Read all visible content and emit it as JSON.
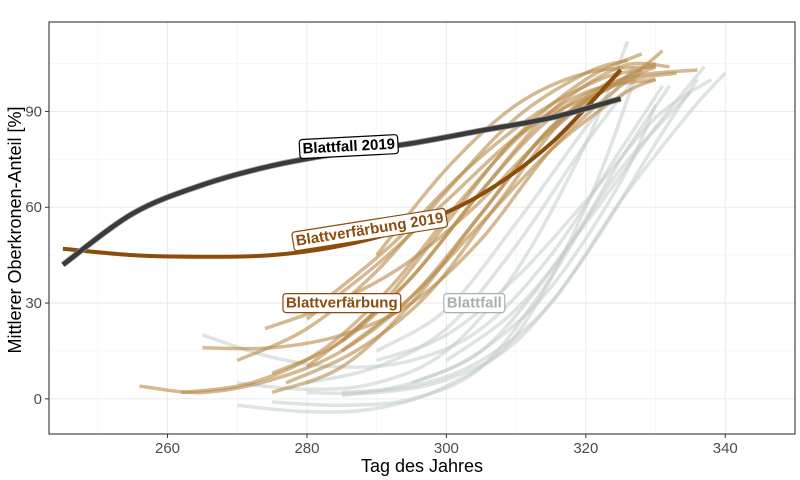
{
  "chart_data": {
    "type": "line",
    "title": "",
    "xlabel": "Tag des Jahres",
    "ylabel": "Mittlerer Oberkronen-Anteil [%]",
    "xlim": [
      243,
      350
    ],
    "ylim": [
      -11,
      118
    ],
    "xticks": [
      260,
      280,
      300,
      320,
      340
    ],
    "yticks": [
      0,
      30,
      60,
      90
    ],
    "grid": true,
    "legend": "none",
    "colors": {
      "blattfall_2019": "#3a3a3a",
      "blattverfaerbung_2019": "#8b4c0c",
      "blattverfaerbung": "#b88a4a",
      "blattfall": "#c2cccc"
    },
    "annotations": [
      {
        "text": "Blattfall 2019",
        "x": 286,
        "y": 79,
        "angle": -3,
        "color": "#000000",
        "border": "#000000"
      },
      {
        "text": "Blattverfärbung 2019",
        "x": 289,
        "y": 53,
        "angle": -9,
        "color": "#8b4c0c",
        "border": "#8b4c0c"
      },
      {
        "text": "Blattverfärbung",
        "x": 285,
        "y": 30,
        "angle": 0,
        "color": "#8b4c0c",
        "border": "#8b4c0c"
      },
      {
        "text": "Blattfall",
        "x": 304,
        "y": 30,
        "angle": 0,
        "color": "#a6b0b0",
        "border": "#a6b0b0"
      }
    ],
    "series": [
      {
        "group": "blattfall",
        "x": [
          270,
          280,
          290,
          300,
          310,
          320,
          327
        ],
        "y": [
          -2,
          -4,
          -3,
          4,
          20,
          60,
          100
        ]
      },
      {
        "group": "blattfall",
        "x": [
          275,
          285,
          295,
          305,
          315,
          325,
          332
        ],
        "y": [
          -1,
          -2,
          0,
          10,
          38,
          75,
          98
        ]
      },
      {
        "group": "blattfall",
        "x": [
          280,
          290,
          300,
          310,
          320,
          330,
          336
        ],
        "y": [
          2,
          2,
          6,
          18,
          45,
          80,
          100
        ]
      },
      {
        "group": "blattfall",
        "x": [
          270,
          280,
          290,
          300,
          310,
          320,
          326
        ],
        "y": [
          5,
          3,
          5,
          15,
          40,
          80,
          112
        ]
      },
      {
        "group": "blattfall",
        "x": [
          265,
          275,
          285,
          295,
          305,
          315,
          325,
          331
        ],
        "y": [
          20,
          13,
          10,
          12,
          22,
          45,
          78,
          98
        ]
      },
      {
        "group": "blattfall",
        "x": [
          285,
          295,
          305,
          315,
          325,
          335,
          340
        ],
        "y": [
          2,
          4,
          12,
          30,
          62,
          90,
          102
        ]
      },
      {
        "group": "blattfall",
        "x": [
          280,
          290,
          300,
          310,
          320,
          328
        ],
        "y": [
          5,
          10,
          22,
          48,
          80,
          103
        ]
      },
      {
        "group": "blattfall",
        "x": [
          290,
          300,
          310,
          320,
          330,
          338
        ],
        "y": [
          12,
          20,
          38,
          62,
          88,
          100
        ]
      },
      {
        "group": "blattfall",
        "x": [
          295,
          305,
          315,
          325,
          335
        ],
        "y": [
          5,
          15,
          40,
          72,
          96
        ]
      },
      {
        "group": "blattfall",
        "x": [
          290,
          300,
          310,
          320,
          327
        ],
        "y": [
          15,
          28,
          55,
          85,
          104
        ]
      },
      {
        "group": "blattfall",
        "x": [
          285,
          295,
          305,
          315,
          325,
          330
        ],
        "y": [
          1,
          5,
          15,
          35,
          68,
          92
        ]
      },
      {
        "group": "blattfall",
        "x": [
          300,
          310,
          320,
          330,
          337
        ],
        "y": [
          12,
          28,
          55,
          85,
          104
        ]
      },
      {
        "group": "blattverfaerbung",
        "x": [
          256,
          265,
          275,
          285,
          295,
          305,
          315,
          325
        ],
        "y": [
          4,
          2,
          6,
          15,
          32,
          58,
          85,
          102
        ]
      },
      {
        "group": "blattverfaerbung",
        "x": [
          265,
          275,
          285,
          295,
          305,
          315,
          325,
          330
        ],
        "y": [
          16,
          16,
          20,
          30,
          50,
          78,
          98,
          104
        ]
      },
      {
        "group": "blattverfaerbung",
        "x": [
          275,
          285,
          295,
          305,
          315,
          325,
          330
        ],
        "y": [
          2,
          10,
          30,
          58,
          85,
          100,
          105
        ]
      },
      {
        "group": "blattverfaerbung",
        "x": [
          280,
          290,
          300,
          310,
          320,
          328
        ],
        "y": [
          10,
          28,
          55,
          82,
          100,
          108
        ]
      },
      {
        "group": "blattverfaerbung",
        "x": [
          285,
          295,
          305,
          315,
          325,
          332
        ],
        "y": [
          18,
          38,
          65,
          90,
          104,
          104
        ]
      },
      {
        "group": "blattverfaerbung",
        "x": [
          275,
          285,
          295,
          305,
          315,
          325,
          336
        ],
        "y": [
          8,
          18,
          38,
          65,
          88,
          100,
          103
        ]
      },
      {
        "group": "blattverfaerbung",
        "x": [
          262,
          272,
          282,
          292,
          302,
          312,
          322
        ],
        "y": [
          2,
          5,
          15,
          35,
          62,
          85,
          96
        ]
      },
      {
        "group": "blattverfaerbung",
        "x": [
          270,
          280,
          290,
          300,
          310,
          320,
          326
        ],
        "y": [
          12,
          22,
          40,
          65,
          88,
          102,
          106
        ]
      },
      {
        "group": "blattverfaerbung",
        "x": [
          290,
          300,
          310,
          320,
          330
        ],
        "y": [
          45,
          72,
          92,
          102,
          104
        ]
      },
      {
        "group": "blattverfaerbung",
        "x": [
          280,
          290,
          300,
          310,
          320,
          330
        ],
        "y": [
          25,
          42,
          62,
          82,
          96,
          100
        ]
      },
      {
        "group": "blattverfaerbung",
        "x": [
          285,
          295,
          305,
          315,
          325,
          330
        ],
        "y": [
          15,
          32,
          55,
          78,
          95,
          100
        ]
      },
      {
        "group": "blattverfaerbung",
        "x": [
          277,
          287,
          297,
          307,
          317,
          327,
          331
        ],
        "y": [
          5,
          15,
          32,
          60,
          88,
          102,
          109
        ]
      },
      {
        "group": "blattverfaerbung",
        "x": [
          282,
          292,
          302,
          312,
          322,
          328
        ],
        "y": [
          30,
          48,
          70,
          88,
          100,
          103
        ]
      },
      {
        "group": "blattverfaerbung",
        "x": [
          274,
          284,
          294,
          304,
          314,
          324,
          333
        ],
        "y": [
          22,
          30,
          42,
          60,
          82,
          98,
          102
        ]
      },
      {
        "group": "blattverfaerbung_2019",
        "x": [
          245,
          255,
          265,
          275,
          285,
          295,
          305,
          315,
          325
        ],
        "y": [
          47,
          45,
          44.5,
          45,
          48,
          54,
          64,
          80,
          103
        ]
      },
      {
        "group": "blattfall_2019",
        "x": [
          245,
          255,
          265,
          275,
          285,
          295,
          305,
          315,
          325
        ],
        "y": [
          42,
          58,
          67,
          73,
          77,
          80,
          84,
          88,
          94
        ]
      }
    ]
  }
}
